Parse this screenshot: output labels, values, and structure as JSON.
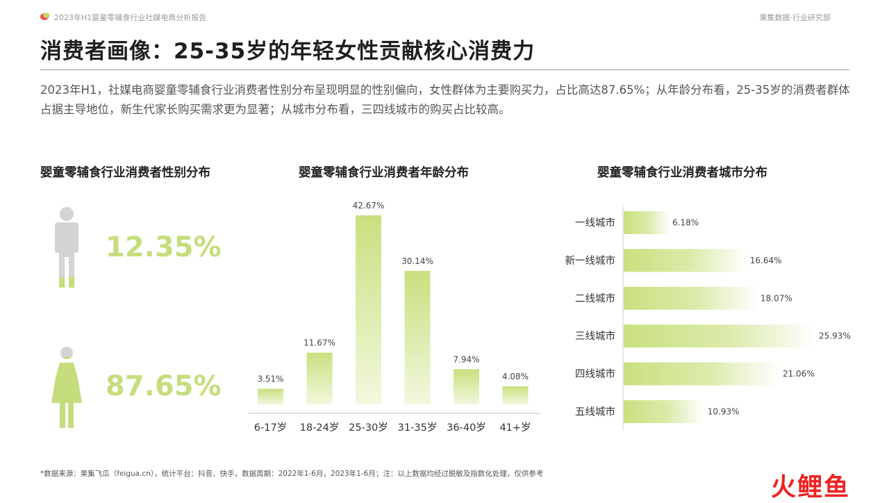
{
  "header": {
    "report_title": "2023年H1婴童零辅食行业社媒电商分析报告",
    "org_name": "果集数据·行业研究部"
  },
  "page_title": "消费者画像：25-35岁的年轻女性贡献核心消费力",
  "summary": "2023年H1，社媒电商婴童零辅食行业消费者性别分布呈现明显的性别偏向，女性群体为主要购买力，占比高达87.65%；从年龄分布看，25-35岁的消费者群体占据主导地位，新生代家长购买需求更为显著；从城市分布看，三四线城市的购买占比较高。",
  "colors": {
    "accent": "#c6dd7d",
    "bar_top": "#c9e07f",
    "bar_bottom": "#f2f8de",
    "figure_gray": "#d4d4d4",
    "brand_red": "#ee2222"
  },
  "chart_data": [
    {
      "type": "pictogram",
      "title": "婴童零辅食行业消费者性别分布",
      "categories": [
        "male",
        "female"
      ],
      "values": [
        12.35,
        87.65
      ],
      "labels": [
        "12.35%",
        "87.65%"
      ],
      "icons": [
        "male-figure-icon",
        "female-figure-icon"
      ]
    },
    {
      "type": "bar",
      "title": "婴童零辅食行业消费者年龄分布",
      "categories": [
        "6-17岁",
        "18-24岁",
        "25-30岁",
        "31-35岁",
        "36-40岁",
        "41+岁"
      ],
      "values": [
        3.51,
        11.67,
        42.67,
        30.14,
        7.94,
        4.08
      ],
      "labels": [
        "3.51%",
        "11.67%",
        "42.67%",
        "30.14%",
        "7.94%",
        "4.08%"
      ],
      "ylim": [
        0,
        42.67
      ],
      "grid": false,
      "legend": "none"
    },
    {
      "type": "bar",
      "orientation": "horizontal",
      "title": "婴童零辅食行业消费者城市分布",
      "categories": [
        "一线城市",
        "新一线城市",
        "二线城市",
        "三线城市",
        "四线城市",
        "五线城市"
      ],
      "values": [
        6.18,
        16.64,
        18.07,
        25.93,
        21.06,
        10.93
      ],
      "labels": [
        "6.18%",
        "16.64%",
        "18.07%",
        "25.93%",
        "21.06%",
        "10.93%"
      ],
      "xlim": [
        0,
        25.93
      ],
      "grid": false,
      "legend": "none"
    }
  ],
  "footnote": "*数据来源：果集飞瓜（feigua.cn），统计平台：抖音、快手，数据周期：2022年1-6月，2023年1-6月；注：以上数据均经过脱敏及指数化处理，仅供参考",
  "watermark": "火鲤鱼"
}
